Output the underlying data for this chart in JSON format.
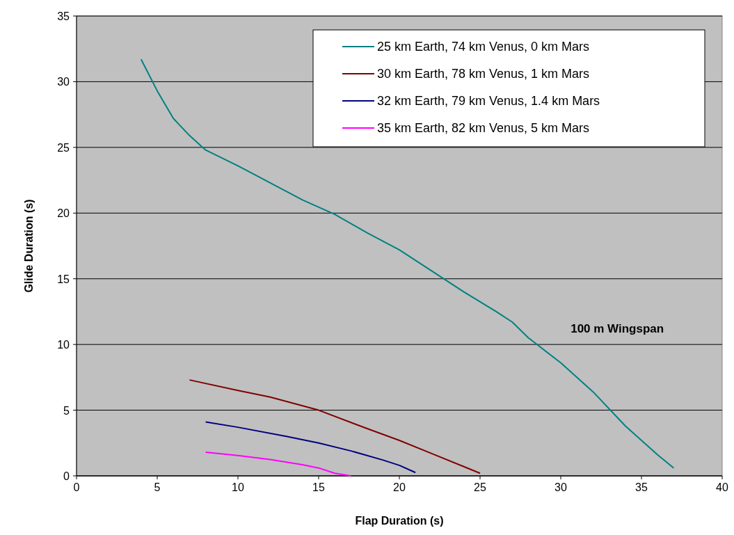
{
  "chart_data": {
    "type": "line",
    "xlabel": "Flap Duration (s)",
    "ylabel": "Glide Duration (s)",
    "annotations": [
      "100 m Wingspan"
    ],
    "xlim": [
      0,
      40
    ],
    "xticks": [
      0,
      5,
      10,
      15,
      20,
      25,
      30,
      35,
      40
    ],
    "ylim": [
      0,
      35
    ],
    "yticks": [
      0,
      5,
      10,
      15,
      20,
      25,
      30,
      35
    ],
    "grid": "y",
    "legend": "top right",
    "marker": "none",
    "line_style": "solid",
    "series": [
      {
        "name": "25 km Earth, 74 km Venus, 0 km Mars",
        "color": "#008080",
        "x": [
          4,
          5,
          6,
          7,
          8,
          10,
          12,
          14,
          16,
          18,
          20,
          22,
          24,
          26,
          27,
          28,
          30,
          32,
          34,
          36,
          37
        ],
        "values": [
          31.7,
          29.3,
          27.2,
          25.9,
          24.8,
          23.6,
          22.3,
          21,
          19.9,
          18.5,
          17.2,
          15.6,
          14,
          12.5,
          11.7,
          10.5,
          8.6,
          6.4,
          3.8,
          1.6,
          0.6
        ]
      },
      {
        "name": "30 km Earth, 78 km Venus, 1 km Mars",
        "color": "#800000",
        "x": [
          7,
          10,
          12,
          15,
          18,
          20,
          22,
          24,
          25
        ],
        "values": [
          7.3,
          6.5,
          6,
          5,
          3.6,
          2.7,
          1.7,
          0.7,
          0.2
        ]
      },
      {
        "name": "32 km Earth, 79 km Venus, 1.4 km Mars",
        "color": "#000080",
        "x": [
          8,
          10,
          13,
          15,
          17,
          19,
          20,
          21
        ],
        "values": [
          4.1,
          3.7,
          3,
          2.5,
          1.9,
          1.2,
          0.8,
          0.25
        ]
      },
      {
        "name": "35 km Earth, 82 km Venus, 5 km Mars",
        "color": "#ff00ff",
        "x": [
          8,
          10,
          12,
          14,
          15,
          16,
          17
        ],
        "values": [
          1.8,
          1.55,
          1.25,
          0.85,
          0.6,
          0.2,
          0
        ]
      }
    ]
  }
}
